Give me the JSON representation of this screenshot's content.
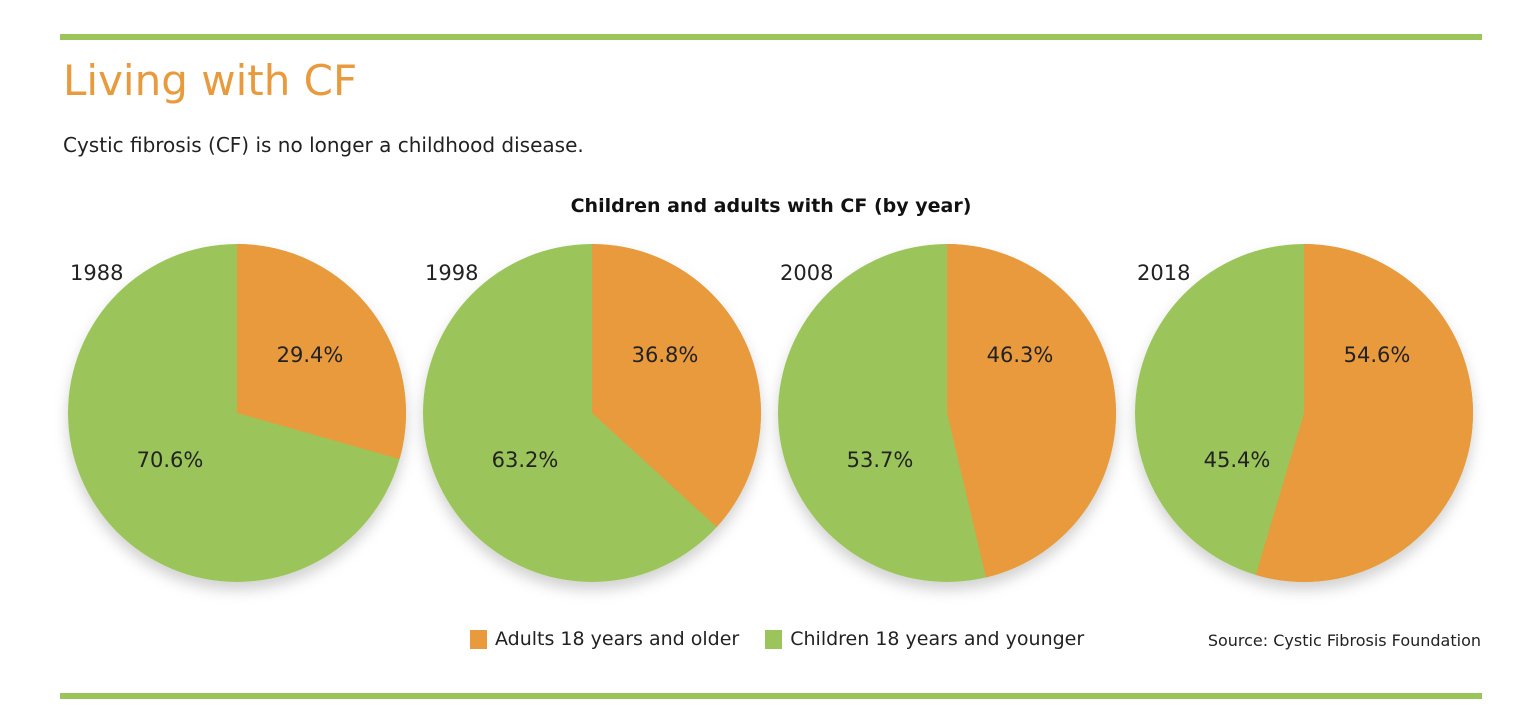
{
  "header": {
    "title": "Living with CF",
    "subtitle": "Cystic fibrosis (CF) is no longer a childhood disease."
  },
  "source": "Source: Cystic Fibrosis Foundation",
  "colors": {
    "accent_rule": "#9BC55A",
    "title": "#E89A3C",
    "adults": "#E89A3C",
    "children": "#9BC55A"
  },
  "chart_data": {
    "type": "pie",
    "title": "Children and adults with CF (by year)",
    "legend_placement": "bottom",
    "legend": [
      "Adults 18 years and older",
      "Children 18 years and younger"
    ],
    "charts": [
      {
        "year": "1988",
        "adults": 29.4,
        "children": 70.6,
        "adults_label": "29.4%",
        "children_label": "70.6%"
      },
      {
        "year": "1998",
        "adults": 36.8,
        "children": 63.2,
        "adults_label": "36.8%",
        "children_label": "63.2%"
      },
      {
        "year": "2008",
        "adults": 46.3,
        "children": 53.7,
        "adults_label": "46.3%",
        "children_label": "53.7%"
      },
      {
        "year": "2018",
        "adults": 54.6,
        "children": 45.4,
        "adults_label": "54.6%",
        "children_label": "45.4%"
      }
    ]
  }
}
